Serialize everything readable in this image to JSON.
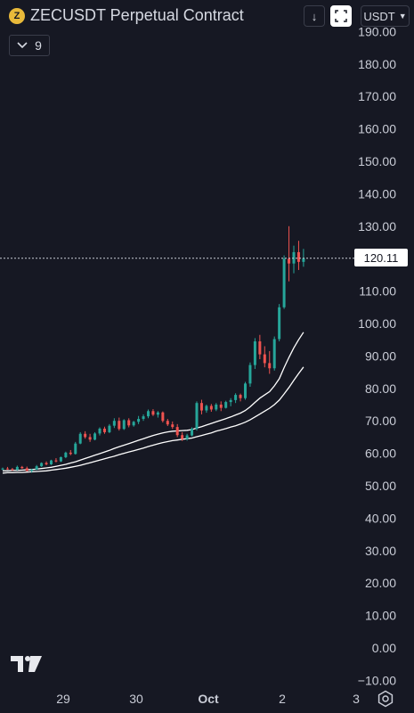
{
  "header": {
    "symbol_title": "ZECUSDT Perpetual Contract",
    "coin_glyph": "Z",
    "currency": "USDT",
    "indicator_count": "9"
  },
  "chart_data": {
    "type": "candlestick",
    "title": "ZECUSDT Perpetual Contract",
    "last_price": "120.11",
    "y_ticks": [
      "190.00",
      "180.00",
      "170.00",
      "160.00",
      "150.00",
      "140.00",
      "130.00",
      "120.00",
      "110.00",
      "100.00",
      "90.00",
      "80.00",
      "70.00",
      "60.00",
      "50.00",
      "40.00",
      "30.00",
      "20.00",
      "10.00",
      "0.00",
      "−10.00"
    ],
    "ylim": [
      -12,
      192
    ],
    "x_ticks": [
      "29",
      "30",
      "Oct",
      "2",
      "3"
    ],
    "grid": false,
    "colors": {
      "up": "#26a69a",
      "down": "#ef5350",
      "background": "#161823",
      "ma": "#ffffff"
    },
    "candles": [
      [
        55.0,
        55.6,
        54.8,
        55.3
      ],
      [
        55.3,
        55.8,
        54.9,
        55.1
      ],
      [
        55.1,
        55.5,
        54.6,
        54.9
      ],
      [
        54.9,
        56.2,
        54.7,
        55.8
      ],
      [
        55.8,
        56.1,
        55.2,
        55.4
      ],
      [
        55.4,
        55.9,
        54.4,
        54.6
      ],
      [
        54.6,
        55.2,
        54.0,
        55.0
      ],
      [
        55.0,
        56.4,
        54.8,
        56.0
      ],
      [
        56.0,
        57.2,
        55.8,
        57.0
      ],
      [
        57.0,
        57.5,
        56.3,
        56.6
      ],
      [
        56.6,
        58.0,
        56.4,
        57.8
      ],
      [
        57.8,
        58.5,
        57.2,
        57.5
      ],
      [
        57.5,
        59.0,
        57.3,
        58.8
      ],
      [
        58.8,
        60.5,
        58.5,
        60.2
      ],
      [
        60.2,
        61.0,
        59.4,
        59.8
      ],
      [
        59.8,
        63.5,
        59.6,
        63.0
      ],
      [
        63.0,
        66.5,
        62.8,
        66.0
      ],
      [
        66.0,
        66.8,
        64.5,
        65.0
      ],
      [
        65.0,
        66.0,
        63.5,
        64.2
      ],
      [
        64.2,
        66.5,
        64.0,
        66.1
      ],
      [
        66.1,
        68.0,
        65.5,
        67.6
      ],
      [
        67.6,
        68.2,
        66.0,
        66.5
      ],
      [
        66.5,
        69.0,
        66.2,
        68.5
      ],
      [
        68.5,
        70.8,
        67.8,
        70.0
      ],
      [
        70.0,
        71.0,
        67.0,
        67.5
      ],
      [
        67.5,
        70.5,
        67.2,
        70.2
      ],
      [
        70.2,
        70.8,
        68.0,
        68.6
      ],
      [
        68.6,
        70.0,
        68.2,
        69.7
      ],
      [
        69.7,
        71.5,
        69.0,
        70.6
      ],
      [
        70.6,
        72.0,
        70.0,
        71.4
      ],
      [
        71.4,
        73.5,
        70.8,
        73.0
      ],
      [
        73.0,
        73.6,
        71.5,
        71.9
      ],
      [
        71.9,
        73.0,
        71.0,
        72.6
      ],
      [
        72.6,
        72.9,
        69.5,
        70.0
      ],
      [
        70.0,
        70.6,
        68.4,
        68.9
      ],
      [
        68.9,
        69.8,
        67.5,
        68.1
      ],
      [
        68.1,
        69.0,
        65.0,
        65.6
      ],
      [
        65.6,
        66.5,
        63.8,
        64.4
      ],
      [
        64.4,
        66.0,
        63.9,
        65.5
      ],
      [
        65.5,
        68.0,
        65.2,
        67.6
      ],
      [
        67.6,
        76.0,
        67.0,
        75.5
      ],
      [
        75.5,
        76.5,
        72.0,
        73.2
      ],
      [
        73.2,
        75.0,
        72.5,
        74.6
      ],
      [
        74.6,
        75.2,
        72.8,
        73.5
      ],
      [
        73.5,
        75.5,
        73.0,
        75.0
      ],
      [
        75.0,
        76.0,
        73.0,
        74.0
      ],
      [
        74.0,
        76.2,
        73.8,
        75.8
      ],
      [
        75.8,
        77.0,
        74.5,
        76.4
      ],
      [
        76.4,
        78.5,
        75.5,
        78.0
      ],
      [
        78.0,
        78.4,
        76.0,
        77.0
      ],
      [
        77.0,
        82.0,
        76.5,
        81.5
      ],
      [
        81.5,
        88.0,
        80.5,
        87.2
      ],
      [
        87.2,
        95.5,
        86.0,
        94.5
      ],
      [
        94.5,
        96.5,
        89.0,
        90.5
      ],
      [
        90.5,
        93.0,
        86.5,
        87.8
      ],
      [
        87.8,
        91.5,
        84.5,
        86.2
      ],
      [
        86.2,
        96.0,
        85.5,
        95.2
      ],
      [
        95.2,
        106.0,
        94.5,
        105.0
      ],
      [
        105.0,
        121.0,
        104.5,
        120.0
      ],
      [
        120.0,
        130.0,
        113.0,
        118.5
      ],
      [
        118.5,
        124.0,
        115.5,
        122.0
      ],
      [
        122.0,
        125.5,
        116.5,
        119.0
      ],
      [
        119.0,
        123.0,
        117.5,
        120.11
      ]
    ],
    "moving_averages": [
      {
        "values": [
          54.6,
          54.6,
          54.7,
          54.7,
          54.8,
          54.9,
          55.0,
          55.1,
          55.3,
          55.5,
          55.7,
          56.0,
          56.3,
          56.6,
          57.0,
          57.4,
          57.9,
          58.4,
          58.9,
          59.4,
          59.9,
          60.4,
          60.9,
          61.5,
          62.0,
          62.5,
          63.0,
          63.5,
          64.0,
          64.5,
          65.0,
          65.5,
          65.9,
          66.3,
          66.6,
          66.8,
          66.9,
          67.0,
          67.1,
          67.3,
          67.8,
          68.2,
          68.7,
          69.2,
          69.7,
          70.2,
          70.7,
          71.2,
          71.8,
          72.4,
          73.2,
          74.3,
          75.7,
          77.0,
          78.0,
          79.0,
          80.8,
          83.0,
          86.4,
          89.6,
          92.5,
          95.0,
          97.3
        ]
      },
      {
        "values": [
          53.9,
          54.0,
          54.0,
          54.1,
          54.1,
          54.2,
          54.3,
          54.4,
          54.5,
          54.6,
          54.8,
          55.0,
          55.2,
          55.4,
          55.7,
          56.0,
          56.3,
          56.7,
          57.1,
          57.5,
          57.9,
          58.3,
          58.7,
          59.1,
          59.6,
          60.0,
          60.4,
          60.8,
          61.2,
          61.6,
          62.1,
          62.5,
          62.9,
          63.3,
          63.6,
          63.9,
          64.1,
          64.3,
          64.5,
          64.7,
          65.1,
          65.5,
          65.9,
          66.3,
          66.8,
          67.2,
          67.6,
          68.1,
          68.5,
          69.0,
          69.6,
          70.3,
          71.2,
          72.1,
          73.0,
          73.9,
          75.0,
          76.4,
          78.3,
          80.3,
          82.5,
          84.6,
          86.6
        ]
      }
    ]
  }
}
